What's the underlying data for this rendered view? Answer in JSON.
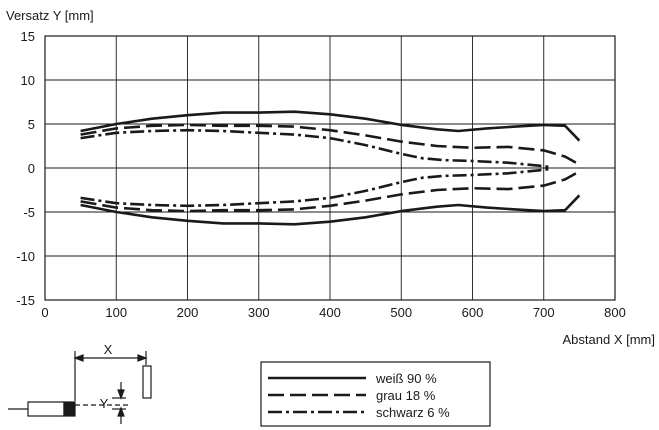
{
  "chart_data": {
    "type": "line",
    "ylabel": "Versatz Y [mm]",
    "xlabel": "Abstand X [mm]",
    "xlim": [
      0,
      800
    ],
    "ylim": [
      -15,
      15
    ],
    "xticks": [
      "0",
      "100",
      "200",
      "300",
      "400",
      "500",
      "600",
      "700",
      "800"
    ],
    "yticks": [
      "15",
      "10",
      "5",
      "0",
      "-5",
      "-10",
      "-15"
    ],
    "grid": true,
    "legend_position": "bottom-right",
    "series": [
      {
        "name": "weiß 90 %",
        "style": "solid",
        "upper": [
          [
            50,
            4.2
          ],
          [
            100,
            5.0
          ],
          [
            150,
            5.6
          ],
          [
            200,
            6.0
          ],
          [
            250,
            6.3
          ],
          [
            300,
            6.3
          ],
          [
            350,
            6.4
          ],
          [
            400,
            6.1
          ],
          [
            450,
            5.6
          ],
          [
            500,
            4.9
          ],
          [
            550,
            4.4
          ],
          [
            580,
            4.2
          ],
          [
            620,
            4.5
          ],
          [
            660,
            4.7
          ],
          [
            700,
            4.9
          ],
          [
            730,
            4.8
          ],
          [
            750,
            3.1
          ]
        ],
        "lower": [
          [
            50,
            -4.2
          ],
          [
            100,
            -5.0
          ],
          [
            150,
            -5.6
          ],
          [
            200,
            -6.0
          ],
          [
            250,
            -6.3
          ],
          [
            300,
            -6.3
          ],
          [
            350,
            -6.4
          ],
          [
            400,
            -6.1
          ],
          [
            450,
            -5.6
          ],
          [
            500,
            -4.9
          ],
          [
            550,
            -4.4
          ],
          [
            580,
            -4.2
          ],
          [
            620,
            -4.5
          ],
          [
            660,
            -4.7
          ],
          [
            700,
            -4.9
          ],
          [
            730,
            -4.8
          ],
          [
            750,
            -3.1
          ]
        ]
      },
      {
        "name": "grau 18 %",
        "style": "dashed",
        "upper": [
          [
            50,
            3.8
          ],
          [
            100,
            4.5
          ],
          [
            150,
            4.8
          ],
          [
            200,
            4.9
          ],
          [
            250,
            4.8
          ],
          [
            300,
            4.8
          ],
          [
            350,
            4.7
          ],
          [
            400,
            4.3
          ],
          [
            450,
            3.7
          ],
          [
            500,
            3.0
          ],
          [
            550,
            2.5
          ],
          [
            600,
            2.3
          ],
          [
            650,
            2.4
          ],
          [
            700,
            2.0
          ],
          [
            730,
            1.3
          ],
          [
            750,
            0.4
          ]
        ],
        "lower": [
          [
            50,
            -3.8
          ],
          [
            100,
            -4.5
          ],
          [
            150,
            -4.8
          ],
          [
            200,
            -4.9
          ],
          [
            250,
            -4.8
          ],
          [
            300,
            -4.8
          ],
          [
            350,
            -4.7
          ],
          [
            400,
            -4.3
          ],
          [
            450,
            -3.7
          ],
          [
            500,
            -3.0
          ],
          [
            550,
            -2.5
          ],
          [
            600,
            -2.3
          ],
          [
            650,
            -2.4
          ],
          [
            700,
            -2.0
          ],
          [
            730,
            -1.3
          ],
          [
            750,
            -0.4
          ]
        ]
      },
      {
        "name": "schwarz 6 %",
        "style": "dash-dot",
        "upper": [
          [
            50,
            3.4
          ],
          [
            100,
            4.0
          ],
          [
            150,
            4.2
          ],
          [
            200,
            4.3
          ],
          [
            250,
            4.2
          ],
          [
            300,
            4.0
          ],
          [
            350,
            3.8
          ],
          [
            400,
            3.4
          ],
          [
            450,
            2.6
          ],
          [
            500,
            1.6
          ],
          [
            530,
            1.1
          ],
          [
            560,
            0.9
          ],
          [
            600,
            0.8
          ],
          [
            650,
            0.6
          ],
          [
            690,
            0.3
          ],
          [
            710,
            0.1
          ]
        ],
        "lower": [
          [
            50,
            -3.4
          ],
          [
            100,
            -4.0
          ],
          [
            150,
            -4.2
          ],
          [
            200,
            -4.3
          ],
          [
            250,
            -4.2
          ],
          [
            300,
            -4.0
          ],
          [
            350,
            -3.8
          ],
          [
            400,
            -3.4
          ],
          [
            450,
            -2.6
          ],
          [
            500,
            -1.6
          ],
          [
            530,
            -1.1
          ],
          [
            560,
            -0.9
          ],
          [
            600,
            -0.8
          ],
          [
            650,
            -0.6
          ],
          [
            690,
            -0.3
          ],
          [
            710,
            -0.1
          ]
        ]
      }
    ]
  },
  "inset": {
    "x_label": "X",
    "y_label": "Y"
  },
  "colors": {
    "line": "#1a1a1a",
    "grid": "#1a1a1a",
    "background": "#ffffff"
  }
}
